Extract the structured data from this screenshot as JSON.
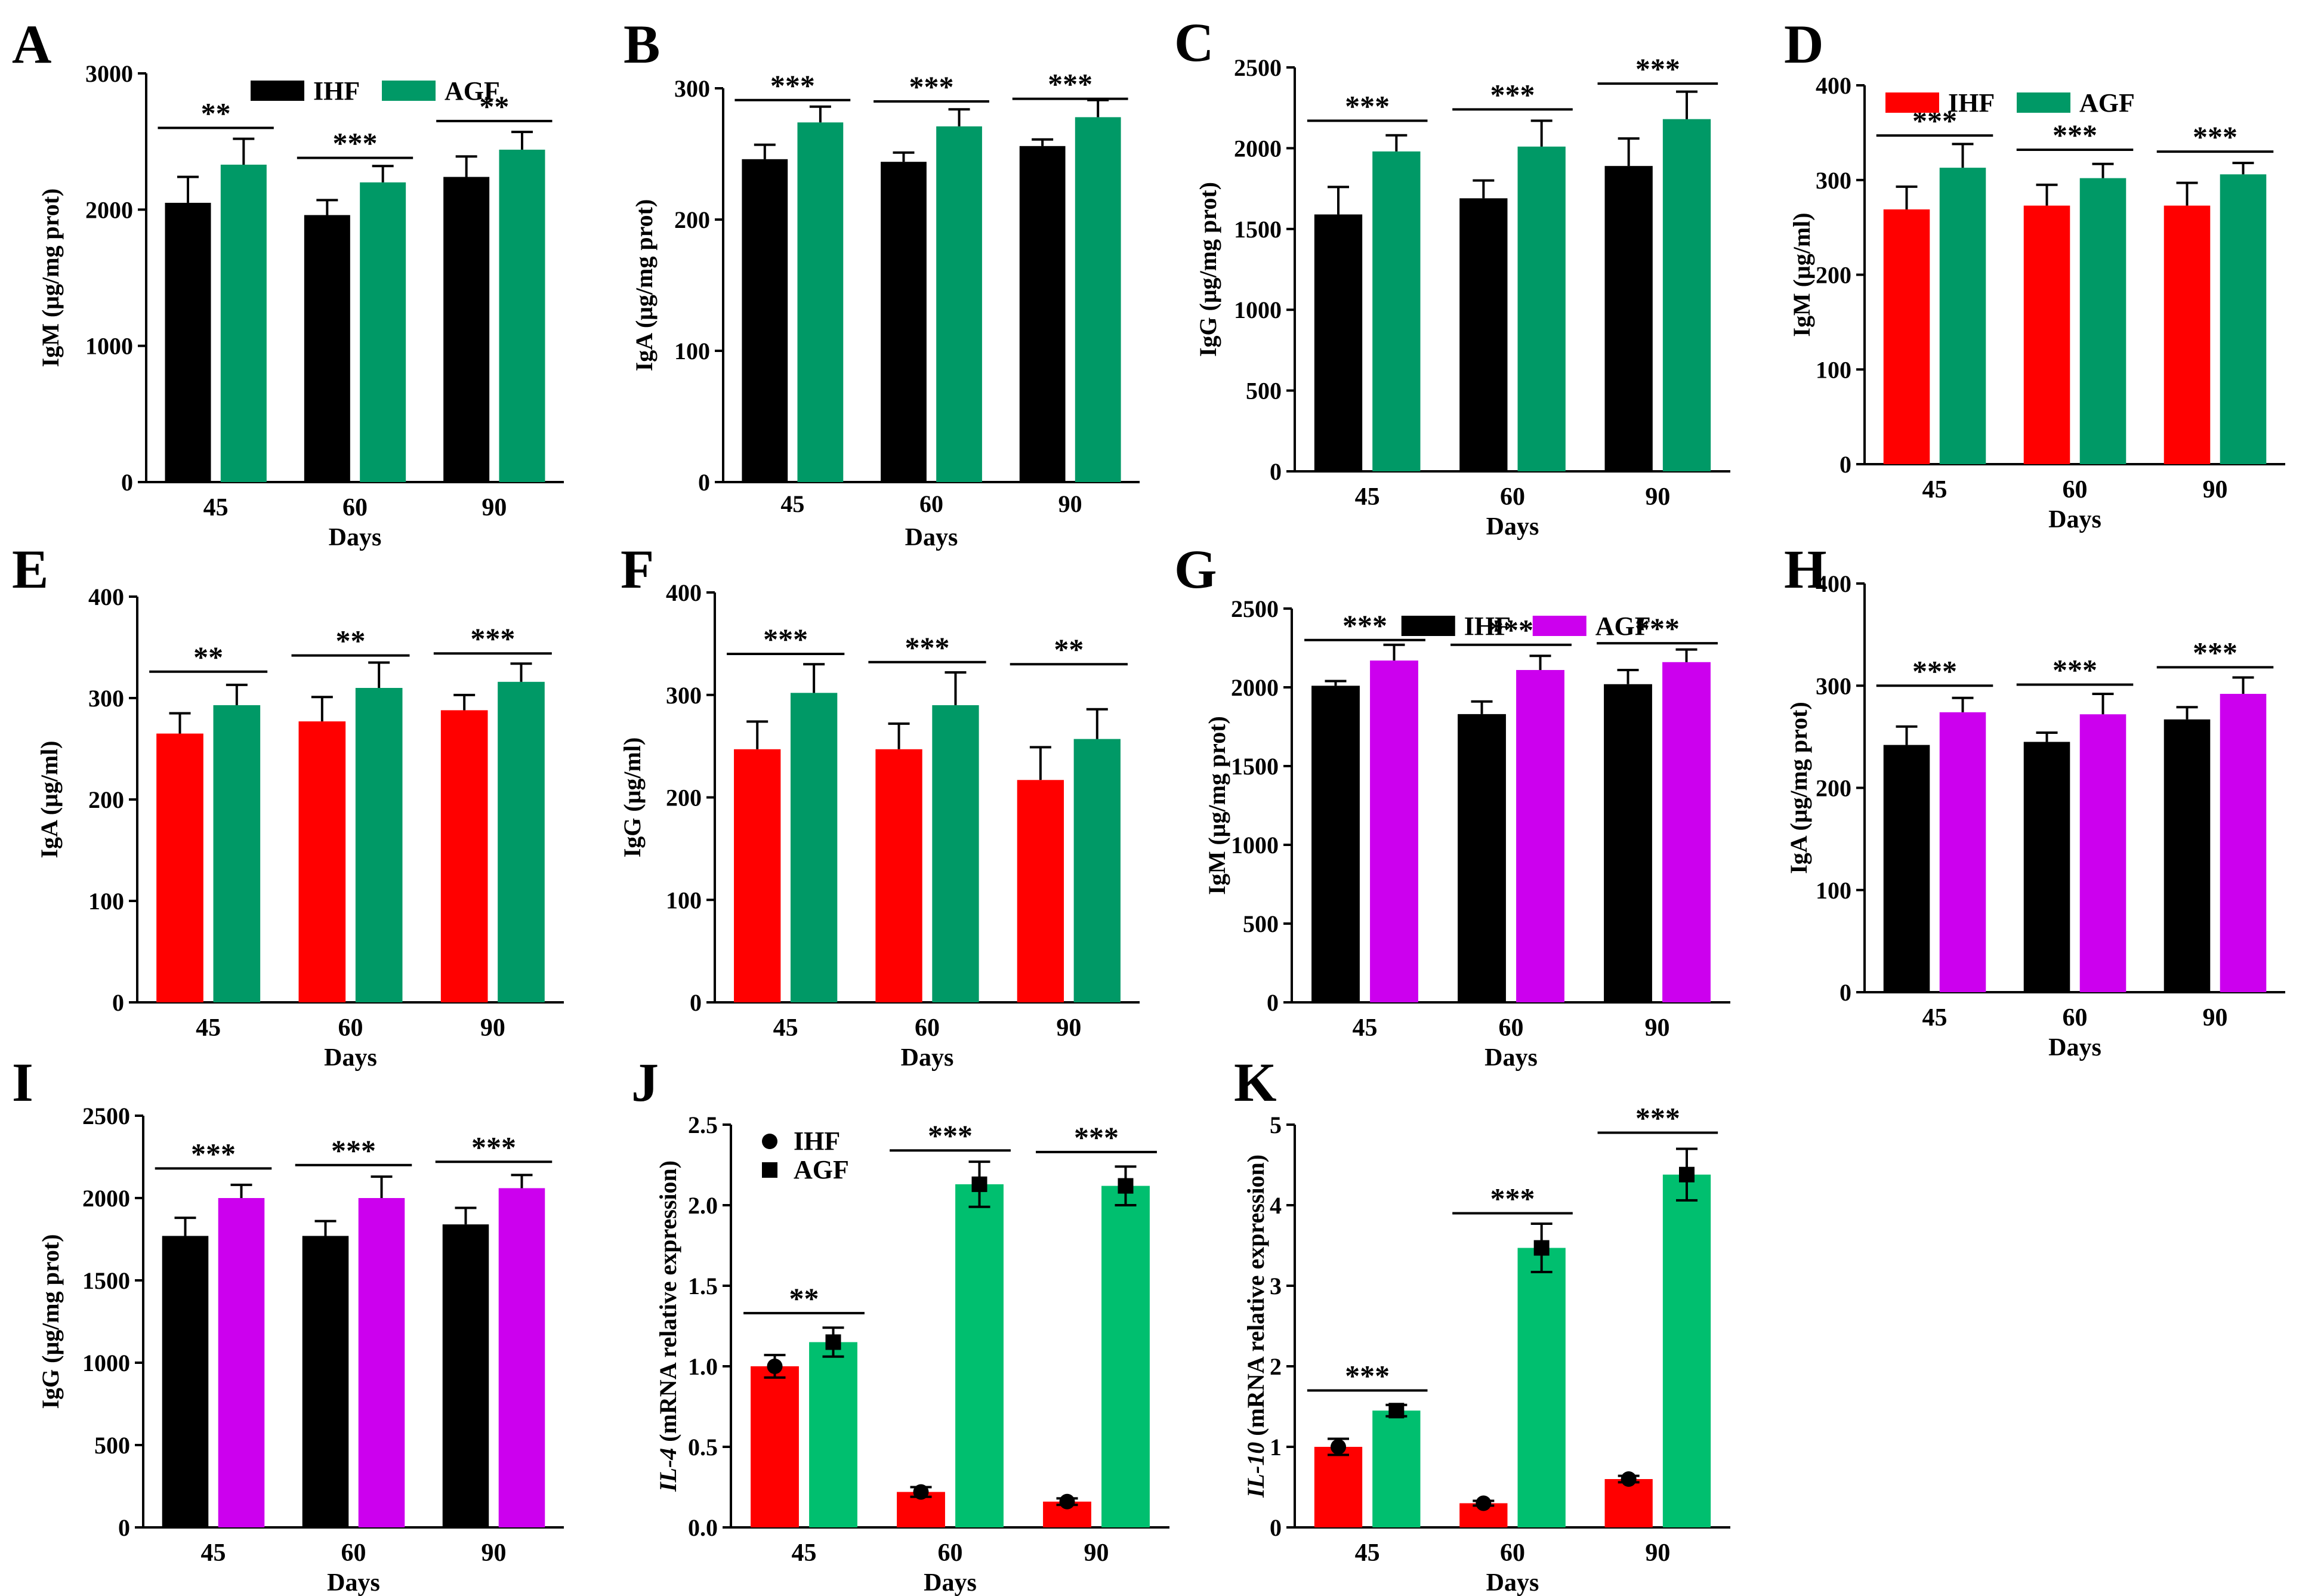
{
  "figure": {
    "colors": {
      "IHF_black": "#000000",
      "IHF_red": "#ff0000",
      "AGF_green": "#009966",
      "AGF_bright_green": "#00bf6f",
      "AGF_magenta": "#cc00ee"
    }
  },
  "chart_data": [
    {
      "id": "A",
      "type": "bar",
      "letter": "A",
      "ylabel": "IgM (μg/mg prot)",
      "xlabel": "Days",
      "categories": [
        "45",
        "60",
        "90"
      ],
      "ylim": [
        0,
        3000
      ],
      "yticks": [
        0,
        1000,
        2000,
        3000
      ],
      "colors": [
        "#000000",
        "#009966"
      ],
      "legend": [
        "IHF",
        "AGF"
      ],
      "legend_position": "top-center",
      "legend_style": "box",
      "series": [
        {
          "name": "IHF",
          "values": [
            2050,
            1960,
            2240
          ],
          "errors": [
            190,
            110,
            150
          ]
        },
        {
          "name": "AGF",
          "values": [
            2330,
            2200,
            2440
          ],
          "errors": [
            190,
            120,
            130
          ]
        }
      ],
      "significance": [
        "**",
        "***",
        "**"
      ],
      "sig_y": [
        2600,
        2380,
        2650
      ],
      "tick_size": "normal"
    },
    {
      "id": "B",
      "type": "bar",
      "letter": "B",
      "ylabel": "IgA (μg/mg prot)",
      "xlabel": "Days",
      "categories": [
        "45",
        "60",
        "90"
      ],
      "ylim": [
        0,
        300
      ],
      "yticks": [
        0,
        100,
        200,
        300
      ],
      "colors": [
        "#000000",
        "#009966"
      ],
      "legend": [],
      "legend_position": "none",
      "legend_style": "box",
      "series": [
        {
          "name": "IHF",
          "values": [
            246,
            244,
            256
          ],
          "errors": [
            11,
            7,
            5
          ]
        },
        {
          "name": "AGF",
          "values": [
            274,
            271,
            278
          ],
          "errors": [
            12,
            13,
            13
          ]
        }
      ],
      "significance": [
        "***",
        "***",
        "***"
      ],
      "sig_y": [
        291,
        290,
        292
      ],
      "tick_size": "small"
    },
    {
      "id": "C",
      "type": "bar",
      "letter": "C",
      "ylabel": "IgG (μg/mg prot)",
      "xlabel": "Days",
      "categories": [
        "45",
        "60",
        "90"
      ],
      "ylim": [
        0,
        2500
      ],
      "yticks": [
        0,
        500,
        1000,
        1500,
        2000,
        2500
      ],
      "colors": [
        "#000000",
        "#009966"
      ],
      "legend": [],
      "legend_position": "none",
      "legend_style": "box",
      "series": [
        {
          "name": "IHF",
          "values": [
            1590,
            1690,
            1890
          ],
          "errors": [
            170,
            110,
            170
          ]
        },
        {
          "name": "AGF",
          "values": [
            1980,
            2010,
            2180
          ],
          "errors": [
            100,
            160,
            170
          ]
        }
      ],
      "significance": [
        "***",
        "***",
        "***"
      ],
      "sig_y": [
        2170,
        2240,
        2400
      ],
      "tick_size": "normal"
    },
    {
      "id": "D",
      "type": "bar",
      "letter": "D",
      "ylabel": "IgM (μg/ml)",
      "xlabel": "Days",
      "categories": [
        "45",
        "60",
        "90"
      ],
      "ylim": [
        0,
        400
      ],
      "yticks": [
        0,
        100,
        200,
        300,
        400
      ],
      "colors": [
        "#ff0000",
        "#009966"
      ],
      "legend": [
        "IHF",
        "AGF"
      ],
      "legend_position": "top-left",
      "legend_style": "box",
      "series": [
        {
          "name": "IHF",
          "values": [
            269,
            273,
            273
          ],
          "errors": [
            24,
            22,
            24
          ]
        },
        {
          "name": "AGF",
          "values": [
            313,
            302,
            306
          ],
          "errors": [
            25,
            15,
            12
          ]
        }
      ],
      "significance": [
        "***",
        "***",
        "***"
      ],
      "sig_y": [
        347,
        332,
        330
      ],
      "tick_size": "normal"
    },
    {
      "id": "E",
      "type": "bar",
      "letter": "E",
      "ylabel": "IgA (μg/ml)",
      "xlabel": "Days",
      "categories": [
        "45",
        "60",
        "90"
      ],
      "ylim": [
        0,
        400
      ],
      "yticks": [
        0,
        100,
        200,
        300,
        400
      ],
      "colors": [
        "#ff0000",
        "#009966"
      ],
      "legend": [],
      "legend_position": "none",
      "legend_style": "box",
      "series": [
        {
          "name": "IHF",
          "values": [
            265,
            277,
            288
          ],
          "errors": [
            20,
            24,
            15
          ]
        },
        {
          "name": "AGF",
          "values": [
            293,
            310,
            316
          ],
          "errors": [
            20,
            25,
            18
          ]
        }
      ],
      "significance": [
        "**",
        "**",
        "***"
      ],
      "sig_y": [
        326,
        342,
        344
      ],
      "tick_size": "normal"
    },
    {
      "id": "F",
      "type": "bar",
      "letter": "F",
      "ylabel": "IgG (μg/ml)",
      "xlabel": "Days",
      "categories": [
        "45",
        "60",
        "90"
      ],
      "ylim": [
        0,
        400
      ],
      "yticks": [
        0,
        100,
        200,
        300,
        400
      ],
      "colors": [
        "#ff0000",
        "#009966"
      ],
      "legend": [],
      "legend_position": "none",
      "legend_style": "box",
      "series": [
        {
          "name": "IHF",
          "values": [
            247,
            247,
            217
          ],
          "errors": [
            27,
            25,
            32
          ]
        },
        {
          "name": "AGF",
          "values": [
            302,
            290,
            257
          ],
          "errors": [
            28,
            32,
            29
          ]
        }
      ],
      "significance": [
        "***",
        "***",
        "**"
      ],
      "sig_y": [
        340,
        332,
        330
      ],
      "tick_size": "normal"
    },
    {
      "id": "G",
      "type": "bar",
      "letter": "G",
      "ylabel": "IgM (μg/mg prot)",
      "xlabel": "Days",
      "categories": [
        "45",
        "60",
        "90"
      ],
      "ylim": [
        0,
        2500
      ],
      "yticks": [
        0,
        500,
        1000,
        1500,
        2000,
        2500
      ],
      "colors": [
        "#000000",
        "#cc00ee"
      ],
      "legend": [
        "IHF",
        "AGF"
      ],
      "legend_position": "top-center",
      "legend_style": "box",
      "series": [
        {
          "name": "IHF",
          "values": [
            2010,
            1830,
            2020
          ],
          "errors": [
            30,
            80,
            90
          ]
        },
        {
          "name": "AGF",
          "values": [
            2170,
            2110,
            2160
          ],
          "errors": [
            100,
            90,
            80
          ]
        }
      ],
      "significance": [
        "***",
        "***",
        "***"
      ],
      "sig_y": [
        2300,
        2270,
        2280
      ],
      "tick_size": "normal"
    },
    {
      "id": "H",
      "type": "bar",
      "letter": "H",
      "ylabel": "IgA (μg/mg prot)",
      "xlabel": "Days",
      "categories": [
        "45",
        "60",
        "90"
      ],
      "ylim": [
        0,
        400
      ],
      "yticks": [
        0,
        100,
        200,
        300,
        400
      ],
      "colors": [
        "#000000",
        "#cc00ee"
      ],
      "legend": [],
      "legend_position": "none",
      "legend_style": "box",
      "series": [
        {
          "name": "IHF",
          "values": [
            242,
            245,
            267
          ],
          "errors": [
            18,
            9,
            12
          ]
        },
        {
          "name": "AGF",
          "values": [
            274,
            272,
            292
          ],
          "errors": [
            14,
            20,
            16
          ]
        }
      ],
      "significance": [
        "***",
        "***",
        "***"
      ],
      "sig_y": [
        300,
        301,
        318
      ],
      "tick_size": "normal"
    },
    {
      "id": "I",
      "type": "bar",
      "letter": "I",
      "ylabel": "IgG (μg/mg prot)",
      "xlabel": "Days",
      "categories": [
        "45",
        "60",
        "90"
      ],
      "ylim": [
        0,
        2500
      ],
      "yticks": [
        0,
        500,
        1000,
        1500,
        2000,
        2500
      ],
      "colors": [
        "#000000",
        "#cc00ee"
      ],
      "legend": [],
      "legend_position": "none",
      "legend_style": "box",
      "series": [
        {
          "name": "IHF",
          "values": [
            1770,
            1770,
            1840
          ],
          "errors": [
            110,
            90,
            100
          ]
        },
        {
          "name": "AGF",
          "values": [
            2000,
            2000,
            2060
          ],
          "errors": [
            80,
            130,
            80
          ]
        }
      ],
      "significance": [
        "***",
        "***",
        "***"
      ],
      "sig_y": [
        2180,
        2200,
        2220
      ],
      "tick_size": "normal"
    },
    {
      "id": "J",
      "type": "bar",
      "letter": "J",
      "ylabel_italic": "IL-4",
      "ylabel_rest": " (mRNA relative expression)",
      "xlabel": "Days",
      "categories": [
        "45",
        "60",
        "90"
      ],
      "ylim": [
        0,
        2.5
      ],
      "yticks": [
        0,
        0.5,
        1.0,
        1.5,
        2.0,
        2.5
      ],
      "ytick_labels": [
        "0.0",
        "0.5",
        "1.0",
        "1.5",
        "2.0",
        "2.5"
      ],
      "colors": [
        "#ff0000",
        "#00bf6f"
      ],
      "legend": [
        "IHF",
        "AGF"
      ],
      "legend_position": "top-left",
      "legend_style": "marker",
      "series": [
        {
          "name": "IHF",
          "values": [
            1.0,
            0.22,
            0.16
          ],
          "errors": [
            0.07,
            0.03,
            0.02
          ]
        },
        {
          "name": "AGF",
          "values": [
            1.15,
            2.13,
            2.12
          ],
          "errors": [
            0.09,
            0.14,
            0.12
          ]
        }
      ],
      "significance": [
        "**",
        "***",
        "***"
      ],
      "sig_y": [
        1.33,
        2.34,
        2.33
      ],
      "tick_size": "normal"
    },
    {
      "id": "K",
      "type": "bar",
      "letter": "K",
      "ylabel_italic": "IL-10",
      "ylabel_rest": " (mRNA relative expression)",
      "xlabel": "Days",
      "categories": [
        "45",
        "60",
        "90"
      ],
      "ylim": [
        0,
        5
      ],
      "yticks": [
        0,
        1,
        2,
        3,
        4,
        5
      ],
      "colors": [
        "#ff0000",
        "#00bf6f"
      ],
      "legend": [],
      "legend_position": "none",
      "legend_style": "marker",
      "series": [
        {
          "name": "IHF",
          "values": [
            1.0,
            0.3,
            0.6
          ],
          "errors": [
            0.1,
            0.03,
            0.04
          ]
        },
        {
          "name": "AGF",
          "values": [
            1.45,
            3.47,
            4.38
          ],
          "errors": [
            0.07,
            0.3,
            0.32
          ]
        }
      ],
      "significance": [
        "***",
        "***",
        "***"
      ],
      "sig_y": [
        1.7,
        3.9,
        4.9
      ],
      "tick_size": "normal"
    }
  ]
}
